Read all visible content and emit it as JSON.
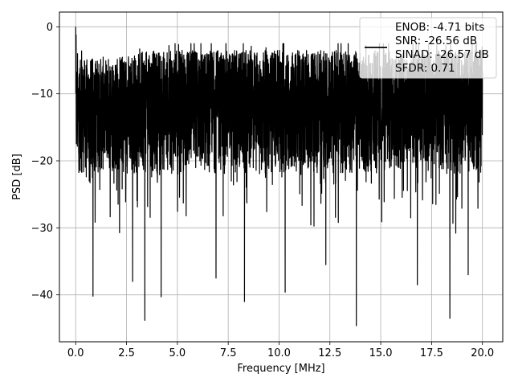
{
  "chart_data": {
    "type": "line",
    "title": "",
    "xlabel": "Frequency [MHz]",
    "ylabel": "PSD [dB]",
    "xlim": [
      -0.8,
      21.0
    ],
    "ylim": [
      -47.0,
      2.2
    ],
    "x_ticks": [
      0.0,
      2.5,
      5.0,
      7.5,
      10.0,
      12.5,
      15.0,
      17.5,
      20.0
    ],
    "x_tick_labels": [
      "0.0",
      "2.5",
      "5.0",
      "7.5",
      "10.0",
      "12.5",
      "15.0",
      "17.5",
      "20.0"
    ],
    "y_ticks": [
      0,
      -10,
      -20,
      -30,
      -40
    ],
    "y_tick_labels": [
      "0",
      "−10",
      "−20",
      "−30",
      "−40"
    ],
    "grid": true,
    "legend_position": "top-right",
    "series": [
      {
        "name": "ENOB: -4.71 bits\nSNR: -26.56 dB\nSINAD: -26.57 dB\nSFDR: 0.71",
        "color": "#000000",
        "x_range": [
          0.0,
          20.0
        ],
        "typical_range_db": [
          -22,
          -5
        ],
        "peak_db": 0.0,
        "deep_notches": [
          {
            "x": 3.4,
            "y": -43.8
          },
          {
            "x": 4.2,
            "y": -40.3
          },
          {
            "x": 0.85,
            "y": -40.2
          },
          {
            "x": 8.3,
            "y": -41.0
          },
          {
            "x": 10.3,
            "y": -39.6
          },
          {
            "x": 13.8,
            "y": -44.6
          },
          {
            "x": 18.4,
            "y": -43.5
          },
          {
            "x": 2.8,
            "y": -38.0
          },
          {
            "x": 12.3,
            "y": -35.5
          },
          {
            "x": 16.8,
            "y": -38.5
          },
          {
            "x": 19.3,
            "y": -37.0
          },
          {
            "x": 6.9,
            "y": -37.5
          }
        ]
      }
    ],
    "legend_lines": [
      "ENOB: -4.71 bits",
      "SNR: -26.56 dB",
      "SINAD: -26.57 dB",
      "SFDR: 0.71"
    ]
  }
}
